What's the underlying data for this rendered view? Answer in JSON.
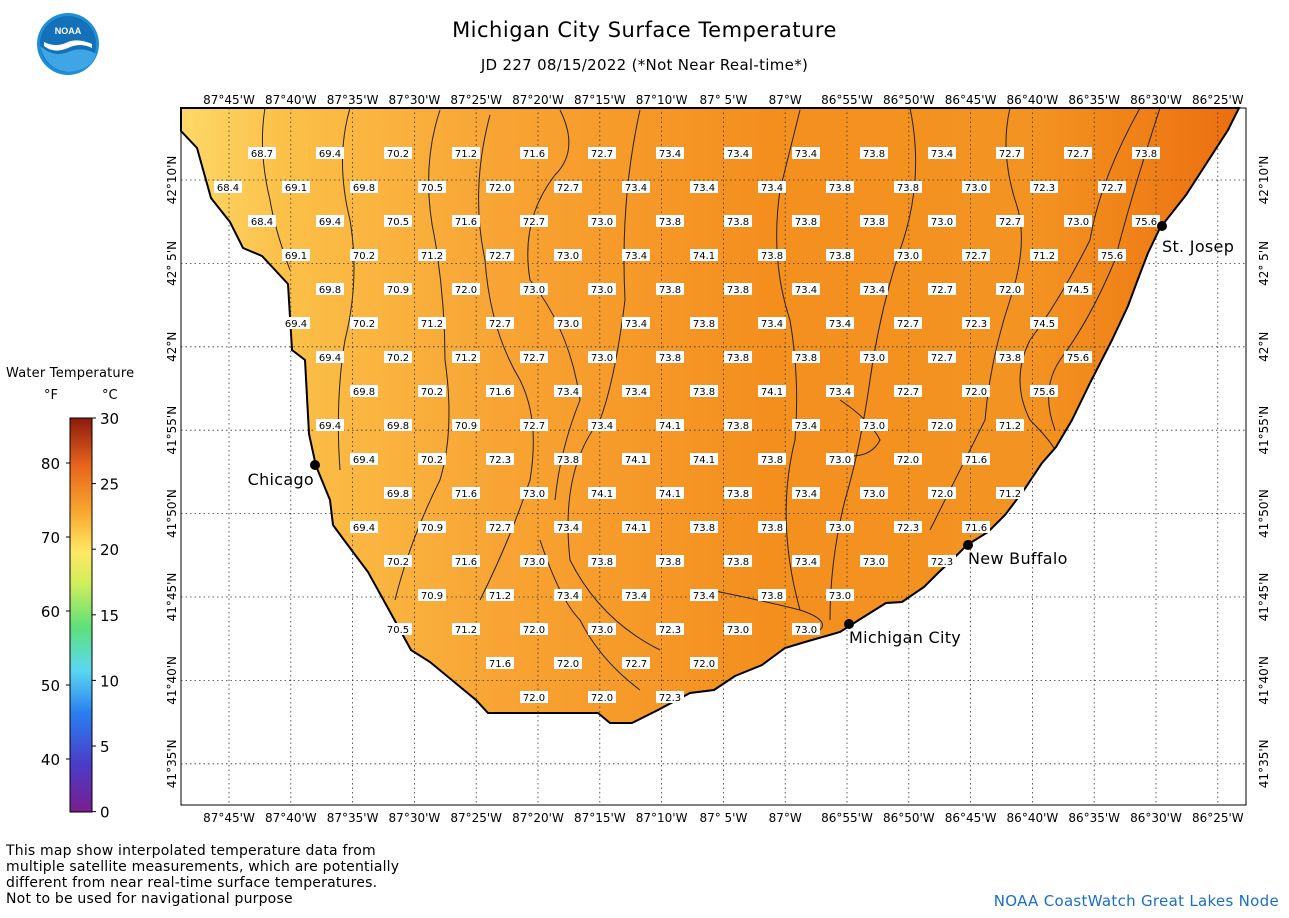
{
  "title": "Michigan City Surface Temperature",
  "subtitle": "JD 227 08/15/2022 (*Not Near Real-time*)",
  "logo_text": "NOAA",
  "lon_ticks": [
    "87°45'W",
    "87°40'W",
    "87°35'W",
    "87°30'W",
    "87°25'W",
    "87°20'W",
    "87°15'W",
    "87°10'W",
    "87° 5'W",
    "87°W",
    "86°55'W",
    "86°50'W",
    "86°45'W",
    "86°40'W",
    "86°35'W",
    "86°30'W",
    "86°25'W"
  ],
  "lat_ticks": [
    "42°10'N",
    "42° 5'N",
    "42°N",
    "41°55'N",
    "41°50'N",
    "41°45'N",
    "41°40'N",
    "41°35'N"
  ],
  "cities": [
    {
      "name": "Chicago"
    },
    {
      "name": "St. Josep"
    },
    {
      "name": "New Buffalo"
    },
    {
      "name": "Michigan City"
    }
  ],
  "temperature_rows": [
    [
      "68.7",
      "69.4",
      "70.2",
      "71.2",
      "71.6",
      "72.7",
      "73.4",
      "73.4",
      "73.4",
      "73.8",
      "73.4",
      "72.7",
      "72.7",
      "73.8"
    ],
    [
      "68.4",
      "69.1",
      "69.8",
      "70.5",
      "72.0",
      "72.7",
      "73.4",
      "73.4",
      "73.4",
      "73.8",
      "73.8",
      "73.0",
      "72.3",
      "72.7"
    ],
    [
      "68.4",
      "69.4",
      "70.5",
      "71.6",
      "72.7",
      "73.0",
      "73.8",
      "73.8",
      "73.8",
      "73.8",
      "73.0",
      "72.7",
      "73.0",
      "75.6"
    ],
    [
      "69.1",
      "70.2",
      "71.2",
      "72.7",
      "73.0",
      "73.4",
      "74.1",
      "73.8",
      "73.8",
      "73.0",
      "72.7",
      "71.2",
      "75.6"
    ],
    [
      "69.8",
      "70.9",
      "72.0",
      "73.0",
      "73.0",
      "73.8",
      "73.8",
      "73.4",
      "73.4",
      "72.7",
      "72.0",
      "74.5"
    ],
    [
      "69.4",
      "70.2",
      "71.2",
      "72.7",
      "73.0",
      "73.4",
      "73.8",
      "73.4",
      "73.4",
      "72.7",
      "72.3",
      "74.5"
    ],
    [
      "69.4",
      "70.2",
      "71.2",
      "72.7",
      "73.0",
      "73.8",
      "73.8",
      "73.8",
      "73.0",
      "72.7",
      "73.8",
      "75.6"
    ],
    [
      "69.8",
      "70.2",
      "71.6",
      "73.4",
      "73.4",
      "73.8",
      "74.1",
      "73.4",
      "72.7",
      "72.0",
      "75.6"
    ],
    [
      "69.4",
      "69.8",
      "70.9",
      "72.7",
      "73.4",
      "74.1",
      "73.8",
      "73.4",
      "73.0",
      "72.0",
      "71.2"
    ],
    [
      "69.4",
      "70.2",
      "72.3",
      "73.8",
      "74.1",
      "74.1",
      "73.8",
      "73.0",
      "72.0",
      "71.6"
    ],
    [
      "69.8",
      "71.6",
      "73.0",
      "74.1",
      "74.1",
      "73.8",
      "73.4",
      "73.0",
      "72.0",
      "71.2"
    ],
    [
      "69.4",
      "70.9",
      "72.7",
      "73.4",
      "74.1",
      "73.8",
      "73.8",
      "73.0",
      "72.3",
      "71.6"
    ],
    [
      "70.2",
      "71.6",
      "73.0",
      "73.8",
      "73.8",
      "73.8",
      "73.4",
      "73.0",
      "72.3"
    ],
    [
      "70.9",
      "71.2",
      "73.4",
      "73.4",
      "73.4",
      "73.8",
      "73.0"
    ],
    [
      "70.5",
      "71.2",
      "72.0",
      "73.0",
      "72.3",
      "73.0",
      "73.0"
    ],
    [
      "71.6",
      "72.0",
      "72.7",
      "72.0"
    ],
    [
      "72.0",
      "72.0",
      "72.3"
    ]
  ],
  "legend": {
    "title": "Water Temperature",
    "f_label": "°F",
    "c_label": "°C",
    "f_ticks": [
      "80",
      "70",
      "60",
      "50",
      "40"
    ],
    "c_ticks": [
      "30",
      "25",
      "20",
      "15",
      "10",
      "5",
      "0"
    ]
  },
  "colors": {
    "water_light": "#fdd060",
    "water_mid": "#f8a434",
    "water_warm": "#f59020",
    "water_hot": "#ee7412",
    "credit_text": "#1a6fc4"
  },
  "disclaimer": [
    "This map show interpolated temperature data from",
    "multiple satellite measurements, which are potentially",
    "different from near real-time surface temperatures.",
    "Not to be used for navigational purpose"
  ],
  "credit": "NOAA CoastWatch Great Lakes Node"
}
